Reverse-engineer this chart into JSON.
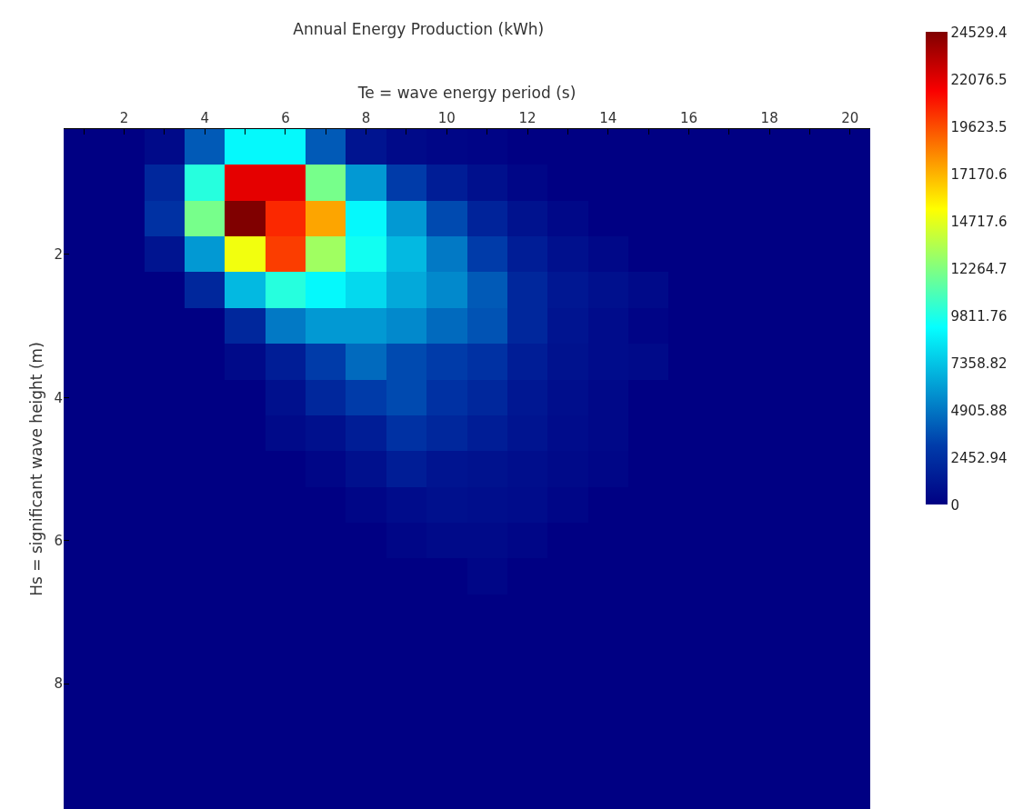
{
  "chart_data": {
    "type": "heatmap",
    "title": "Annual Energy Production (kWh)",
    "xlabel": "Te = wave energy period (s)",
    "ylabel": "Hs = significant wave height (m)",
    "x": [
      1,
      2,
      3,
      4,
      5,
      6,
      7,
      8,
      9,
      10,
      11,
      12,
      13,
      14,
      15,
      16,
      17,
      18,
      19,
      20
    ],
    "y": [
      0.5,
      1,
      1.5,
      2,
      2.5,
      3,
      3.5,
      4,
      4.5,
      5,
      5.5,
      6,
      6.5,
      7,
      7.5,
      8,
      8.5,
      9,
      9.5
    ],
    "cells": [
      [
        0,
        0,
        500,
        4000,
        9000,
        9000,
        4000,
        1000,
        500,
        300,
        200,
        0,
        0,
        0,
        0,
        0,
        0,
        0,
        0,
        0
      ],
      [
        0,
        0,
        2000,
        10000,
        22000,
        22000,
        12000,
        6000,
        3000,
        1500,
        800,
        300,
        0,
        0,
        0,
        0,
        0,
        0,
        0,
        0
      ],
      [
        0,
        0,
        2500,
        12000,
        24529.4,
        20500,
        17500,
        9000,
        6000,
        3500,
        1800,
        900,
        400,
        0,
        0,
        0,
        0,
        0,
        0,
        0
      ],
      [
        0,
        0,
        1000,
        6000,
        15000,
        20000,
        13000,
        9500,
        7000,
        5000,
        3000,
        1500,
        800,
        400,
        0,
        0,
        0,
        0,
        0,
        0
      ],
      [
        0,
        0,
        0,
        2000,
        7000,
        10000,
        9000,
        8000,
        6500,
        5500,
        4000,
        2000,
        1200,
        800,
        500,
        0,
        0,
        0,
        0,
        0
      ],
      [
        0,
        0,
        0,
        0,
        2000,
        5000,
        6000,
        6000,
        5500,
        4500,
        3800,
        2000,
        1000,
        600,
        200,
        0,
        0,
        0,
        0,
        0
      ],
      [
        0,
        0,
        0,
        0,
        500,
        1500,
        3000,
        4500,
        3500,
        3000,
        2500,
        1500,
        900,
        600,
        500,
        0,
        0,
        0,
        0,
        0
      ],
      [
        0,
        0,
        0,
        0,
        0,
        800,
        2000,
        3000,
        3500,
        2500,
        2000,
        1200,
        700,
        400,
        0,
        0,
        0,
        0,
        0,
        0
      ],
      [
        0,
        0,
        0,
        0,
        0,
        500,
        800,
        1500,
        2500,
        2000,
        1500,
        1000,
        600,
        400,
        0,
        0,
        0,
        0,
        0,
        0
      ],
      [
        0,
        0,
        0,
        0,
        0,
        0,
        300,
        800,
        1500,
        1000,
        900,
        700,
        500,
        300,
        0,
        0,
        0,
        0,
        0,
        0
      ],
      [
        0,
        0,
        0,
        0,
        0,
        0,
        0,
        300,
        600,
        800,
        700,
        600,
        300,
        0,
        0,
        0,
        0,
        0,
        0,
        0
      ],
      [
        0,
        0,
        0,
        0,
        0,
        0,
        0,
        0,
        300,
        500,
        500,
        300,
        0,
        0,
        0,
        0,
        0,
        0,
        0,
        0
      ],
      [
        0,
        0,
        0,
        0,
        0,
        0,
        0,
        0,
        0,
        0,
        300,
        0,
        0,
        0,
        0,
        0,
        0,
        0,
        0,
        0
      ],
      [
        0,
        0,
        0,
        0,
        0,
        0,
        0,
        0,
        0,
        0,
        0,
        0,
        0,
        0,
        0,
        0,
        0,
        0,
        0,
        0
      ],
      [
        0,
        0,
        0,
        0,
        0,
        0,
        0,
        0,
        0,
        0,
        0,
        0,
        0,
        0,
        0,
        0,
        0,
        0,
        0,
        0
      ],
      [
        0,
        0,
        0,
        0,
        0,
        0,
        0,
        0,
        0,
        0,
        0,
        0,
        0,
        0,
        0,
        0,
        0,
        0,
        0,
        0
      ],
      [
        0,
        0,
        0,
        0,
        0,
        0,
        0,
        0,
        0,
        0,
        0,
        0,
        0,
        0,
        0,
        0,
        0,
        0,
        0,
        0
      ],
      [
        0,
        0,
        0,
        0,
        0,
        0,
        0,
        0,
        0,
        0,
        0,
        0,
        0,
        0,
        0,
        0,
        0,
        0,
        0,
        0
      ],
      [
        0,
        0,
        0,
        0,
        0,
        0,
        0,
        0,
        0,
        0,
        0,
        0,
        0,
        0,
        0,
        0,
        0,
        0,
        0,
        0
      ]
    ],
    "clim": [
      0,
      24529.4
    ],
    "cticks": [
      0,
      2452.94,
      4905.88,
      7358.82,
      9811.76,
      12264.7,
      14717.6,
      17170.6,
      19623.5,
      22076.5,
      24529.4
    ],
    "xlim": [
      0.5,
      20.5
    ],
    "xticks": [
      {
        "value": 1,
        "label": null
      },
      2,
      {
        "value": 3,
        "label": null
      },
      4,
      {
        "value": 5,
        "label": null
      },
      6,
      {
        "value": 7,
        "label": null
      },
      8,
      {
        "value": 9,
        "label": null
      },
      10,
      {
        "value": 11,
        "label": null
      },
      12,
      {
        "value": 13,
        "label": null
      },
      14,
      {
        "value": 15,
        "label": null
      },
      16,
      {
        "value": 17,
        "label": null
      },
      18,
      {
        "value": 19,
        "label": null
      },
      20
    ],
    "ylim": [
      9.75,
      0.25
    ],
    "yticks": [
      2,
      4,
      6,
      8
    ]
  }
}
